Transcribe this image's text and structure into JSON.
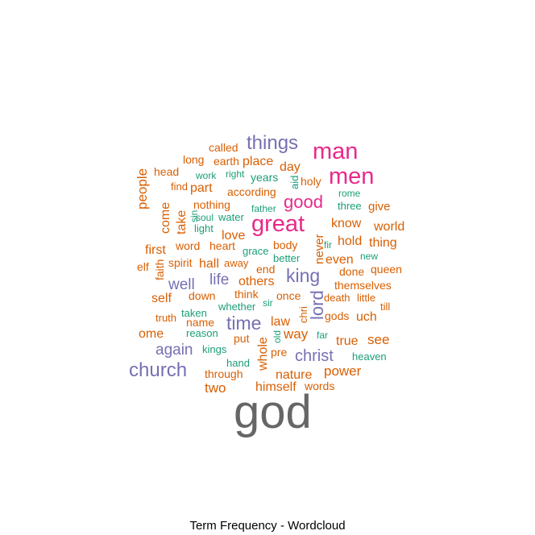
{
  "chart_data": {
    "type": "wordcloud",
    "title": "Term Frequency - Wordcloud",
    "palette": {
      "tier1": "#666666",
      "tier2": "#E7298A",
      "tier3": "#7570B3",
      "tier4": "#D95F02",
      "tier5": "#1B9E77"
    },
    "words": [
      {
        "text": "god",
        "tier": 1
      },
      {
        "text": "man",
        "tier": 2
      },
      {
        "text": "men",
        "tier": 2
      },
      {
        "text": "great",
        "tier": 2
      },
      {
        "text": "good",
        "tier": 2
      },
      {
        "text": "things",
        "tier": 3
      },
      {
        "text": "church",
        "tier": 3
      },
      {
        "text": "time",
        "tier": 3
      },
      {
        "text": "king",
        "tier": 3
      },
      {
        "text": "lord",
        "tier": 3
      },
      {
        "text": "christ",
        "tier": 3
      },
      {
        "text": "again",
        "tier": 3
      },
      {
        "text": "well",
        "tier": 3
      },
      {
        "text": "life",
        "tier": 3
      },
      {
        "text": "called",
        "tier": 4
      },
      {
        "text": "long",
        "tier": 4
      },
      {
        "text": "earth",
        "tier": 4
      },
      {
        "text": "place",
        "tier": 4
      },
      {
        "text": "day",
        "tier": 4
      },
      {
        "text": "head",
        "tier": 4
      },
      {
        "text": "people",
        "tier": 4
      },
      {
        "text": "find",
        "tier": 4
      },
      {
        "text": "part",
        "tier": 4
      },
      {
        "text": "according",
        "tier": 4
      },
      {
        "text": "holy",
        "tier": 4
      },
      {
        "text": "come",
        "tier": 4
      },
      {
        "text": "nothing",
        "tier": 4
      },
      {
        "text": "give",
        "tier": 4
      },
      {
        "text": "take",
        "tier": 4
      },
      {
        "text": "know",
        "tier": 4
      },
      {
        "text": "world",
        "tier": 4
      },
      {
        "text": "love",
        "tier": 4
      },
      {
        "text": "first",
        "tier": 4
      },
      {
        "text": "word",
        "tier": 4
      },
      {
        "text": "heart",
        "tier": 4
      },
      {
        "text": "body",
        "tier": 4
      },
      {
        "text": "never",
        "tier": 4
      },
      {
        "text": "hold",
        "tier": 4
      },
      {
        "text": "thing",
        "tier": 4
      },
      {
        "text": "elf",
        "tier": 4
      },
      {
        "text": "faith",
        "tier": 4
      },
      {
        "text": "spirit",
        "tier": 4
      },
      {
        "text": "hall",
        "tier": 4
      },
      {
        "text": "away",
        "tier": 4
      },
      {
        "text": "end",
        "tier": 4
      },
      {
        "text": "even",
        "tier": 4
      },
      {
        "text": "done",
        "tier": 4
      },
      {
        "text": "queen",
        "tier": 4
      },
      {
        "text": "others",
        "tier": 4
      },
      {
        "text": "themselves",
        "tier": 4
      },
      {
        "text": "self",
        "tier": 4
      },
      {
        "text": "down",
        "tier": 4
      },
      {
        "text": "think",
        "tier": 4
      },
      {
        "text": "once",
        "tier": 4
      },
      {
        "text": "death",
        "tier": 4
      },
      {
        "text": "little",
        "tier": 4
      },
      {
        "text": "truth",
        "tier": 4
      },
      {
        "text": "chri",
        "tier": 4
      },
      {
        "text": "till",
        "tier": 4
      },
      {
        "text": "name",
        "tier": 4
      },
      {
        "text": "law",
        "tier": 4
      },
      {
        "text": "gods",
        "tier": 4
      },
      {
        "text": "uch",
        "tier": 4
      },
      {
        "text": "ome",
        "tier": 4
      },
      {
        "text": "way",
        "tier": 4
      },
      {
        "text": "put",
        "tier": 4
      },
      {
        "text": "true",
        "tier": 4
      },
      {
        "text": "see",
        "tier": 4
      },
      {
        "text": "whole",
        "tier": 4
      },
      {
        "text": "pre",
        "tier": 4
      },
      {
        "text": "nature",
        "tier": 4
      },
      {
        "text": "power",
        "tier": 4
      },
      {
        "text": "through",
        "tier": 4
      },
      {
        "text": "two",
        "tier": 4
      },
      {
        "text": "himself",
        "tier": 4
      },
      {
        "text": "words",
        "tier": 4
      },
      {
        "text": "work",
        "tier": 5
      },
      {
        "text": "right",
        "tier": 5
      },
      {
        "text": "years",
        "tier": 5
      },
      {
        "text": "aid",
        "tier": 5
      },
      {
        "text": "rome",
        "tier": 5
      },
      {
        "text": "sin",
        "tier": 5
      },
      {
        "text": "soul",
        "tier": 5
      },
      {
        "text": "water",
        "tier": 5
      },
      {
        "text": "father",
        "tier": 5
      },
      {
        "text": "three",
        "tier": 5
      },
      {
        "text": "light",
        "tier": 5
      },
      {
        "text": "grace",
        "tier": 5
      },
      {
        "text": "fir",
        "tier": 5
      },
      {
        "text": "new",
        "tier": 5
      },
      {
        "text": "better",
        "tier": 5
      },
      {
        "text": "whether",
        "tier": 5
      },
      {
        "text": "sir",
        "tier": 5
      },
      {
        "text": "taken",
        "tier": 5
      },
      {
        "text": "reason",
        "tier": 5
      },
      {
        "text": "old",
        "tier": 5
      },
      {
        "text": "far",
        "tier": 5
      },
      {
        "text": "kings",
        "tier": 5
      },
      {
        "text": "heaven",
        "tier": 5
      },
      {
        "text": "hand",
        "tier": 5
      }
    ]
  }
}
